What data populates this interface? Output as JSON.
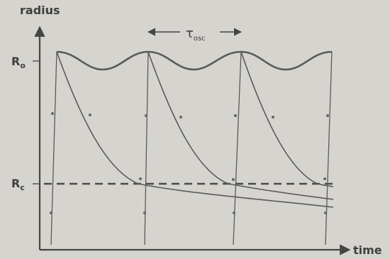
{
  "labels": {
    "y_axis": "radius",
    "x_axis": "time",
    "r0": "R",
    "r0_sub": "o",
    "rc": "R",
    "rc_sub": "c",
    "tau": "τ",
    "tau_sub": "osc"
  },
  "colors": {
    "background": "#d6d4cf",
    "ink": "#454545",
    "curve": "#5a5a5a"
  }
}
